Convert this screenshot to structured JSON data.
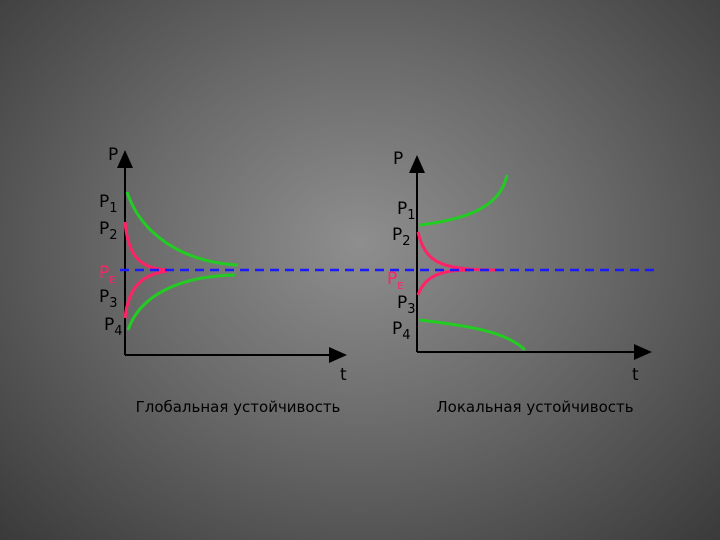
{
  "left": {
    "axis_y": "P",
    "axis_x": "t",
    "levels": [
      {
        "name": "P",
        "sub": "1"
      },
      {
        "name": "P",
        "sub": "2"
      },
      {
        "name": "P",
        "sub": "E"
      },
      {
        "name": "P",
        "sub": "3"
      },
      {
        "name": "P",
        "sub": "4"
      }
    ],
    "caption": "Глобальная устойчивость"
  },
  "right": {
    "axis_y": "P",
    "axis_x": "t",
    "levels": [
      {
        "name": "P",
        "sub": "1"
      },
      {
        "name": "P",
        "sub": "2"
      },
      {
        "name": "P",
        "sub": "E"
      },
      {
        "name": "P",
        "sub": "3"
      },
      {
        "name": "P",
        "sub": "4"
      }
    ],
    "caption": "Локальная устойчивость"
  }
}
